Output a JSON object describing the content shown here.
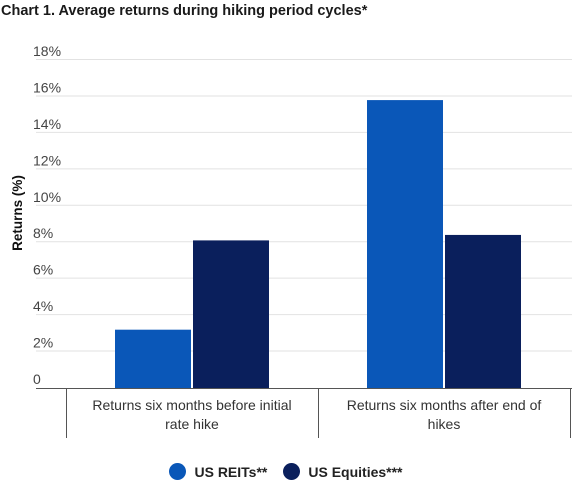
{
  "chart_data": {
    "type": "bar",
    "title": "Chart 1. Average returns during hiking period cycles*",
    "ylabel": "Returns (%)",
    "xlabel": "",
    "ylim": [
      0,
      18
    ],
    "yticks": [
      "0",
      "2%",
      "4%",
      "6%",
      "8%",
      "10%",
      "12%",
      "14%",
      "16%",
      "18%"
    ],
    "categories": [
      [
        "Returns six months before initial",
        "rate hike"
      ],
      [
        "Returns six months after end of",
        "hikes"
      ]
    ],
    "series": [
      {
        "name": "US REITs**",
        "color": "#0a57b8",
        "values": [
          3.2,
          15.8
        ]
      },
      {
        "name": "US Equities***",
        "color": "#0a1f5c",
        "values": [
          8.1,
          8.4
        ]
      }
    ],
    "grid": true,
    "legend": "bottom"
  }
}
